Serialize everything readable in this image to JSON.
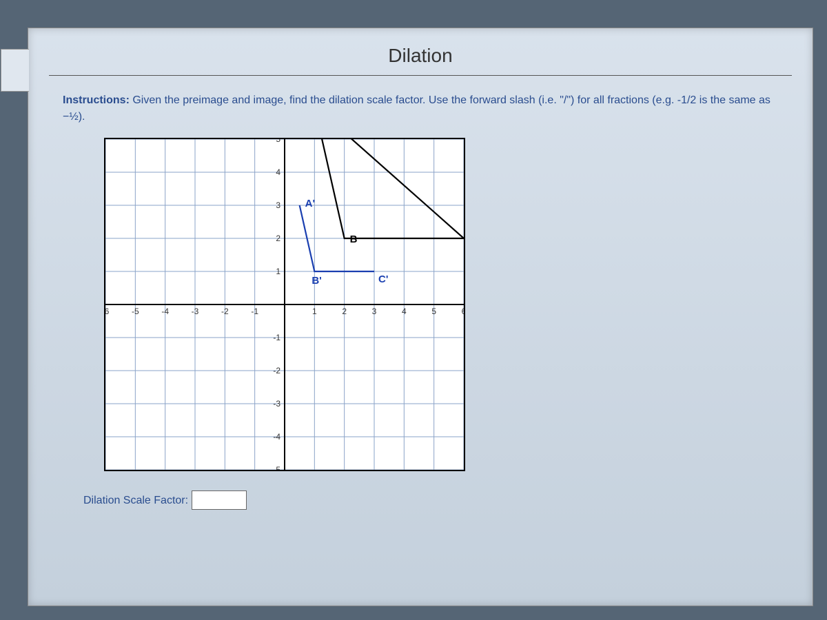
{
  "title": "Dilation",
  "instructions": {
    "label_strong": "Instructions:",
    "text_before": " Given the preimage and image, find the dilation scale factor. Use the forward slash (i.e. \"/\") for all fractions (e.g. -1/2 is the same as ",
    "fraction_tex": "−½",
    "text_after": ")."
  },
  "answer": {
    "label": "Dilation Scale Factor:",
    "value": ""
  },
  "chart": {
    "type": "coordinate-grid",
    "xlim": [
      -6,
      6
    ],
    "ylim": [
      -5,
      5
    ],
    "tick_step": 1,
    "grid_color": "#8aa3c8",
    "axis_color": "#000000",
    "background_color": "#ffffff",
    "tick_fontsize": 12,
    "label_fontsize": 15,
    "preimage": {
      "color": "#000000",
      "line_width": 2.2,
      "points": {
        "A": [
          1,
          6
        ],
        "B": [
          2,
          2
        ],
        "C": [
          6,
          2
        ]
      },
      "extra_segment": [
        [
          1,
          6
        ],
        [
          6,
          2
        ]
      ]
    },
    "image": {
      "color": "#1a3fb0",
      "line_width": 2.2,
      "points": {
        "A'": [
          0.5,
          3
        ],
        "B'": [
          1,
          1
        ],
        "C'": [
          3,
          1
        ]
      }
    }
  }
}
